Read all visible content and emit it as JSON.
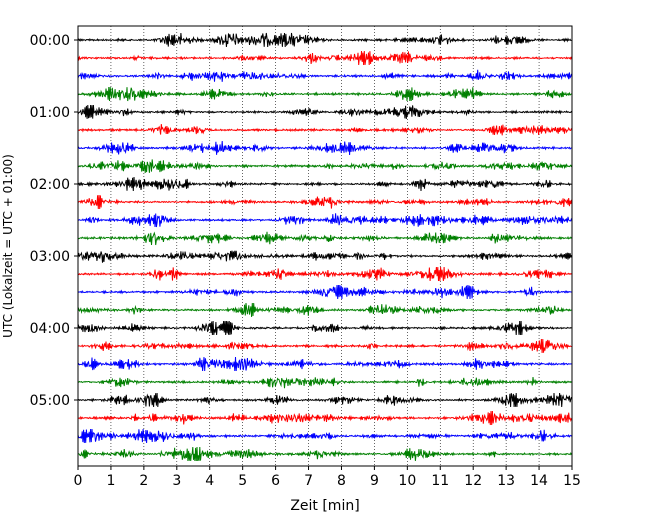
{
  "chart_data": {
    "type": "line",
    "title": "",
    "xlabel": "Zeit  [min]",
    "ylabel": "UTC (Lokalzeit = UTC + 01:00)",
    "xlim": [
      0,
      15
    ],
    "x_ticks": [
      "0",
      "1",
      "2",
      "3",
      "4",
      "5",
      "6",
      "7",
      "8",
      "9",
      "10",
      "11",
      "12",
      "13",
      "14",
      "15"
    ],
    "y_ticks": [
      "00:00",
      "01:00",
      "02:00",
      "03:00",
      "04:00",
      "05:00"
    ],
    "grid": "vertical dotted",
    "trace_colors": [
      "#000000",
      "#ff0000",
      "#0000ff",
      "#008000"
    ],
    "traces_per_hour": 4,
    "trace_count": 24,
    "trace_start_times": [
      "00:00",
      "00:15",
      "00:30",
      "00:45",
      "01:00",
      "01:15",
      "01:30",
      "01:45",
      "02:00",
      "02:15",
      "02:30",
      "02:45",
      "03:00",
      "03:15",
      "03:30",
      "03:45",
      "04:00",
      "04:15",
      "04:30",
      "04:45",
      "05:00",
      "05:15",
      "05:30",
      "05:45"
    ]
  }
}
